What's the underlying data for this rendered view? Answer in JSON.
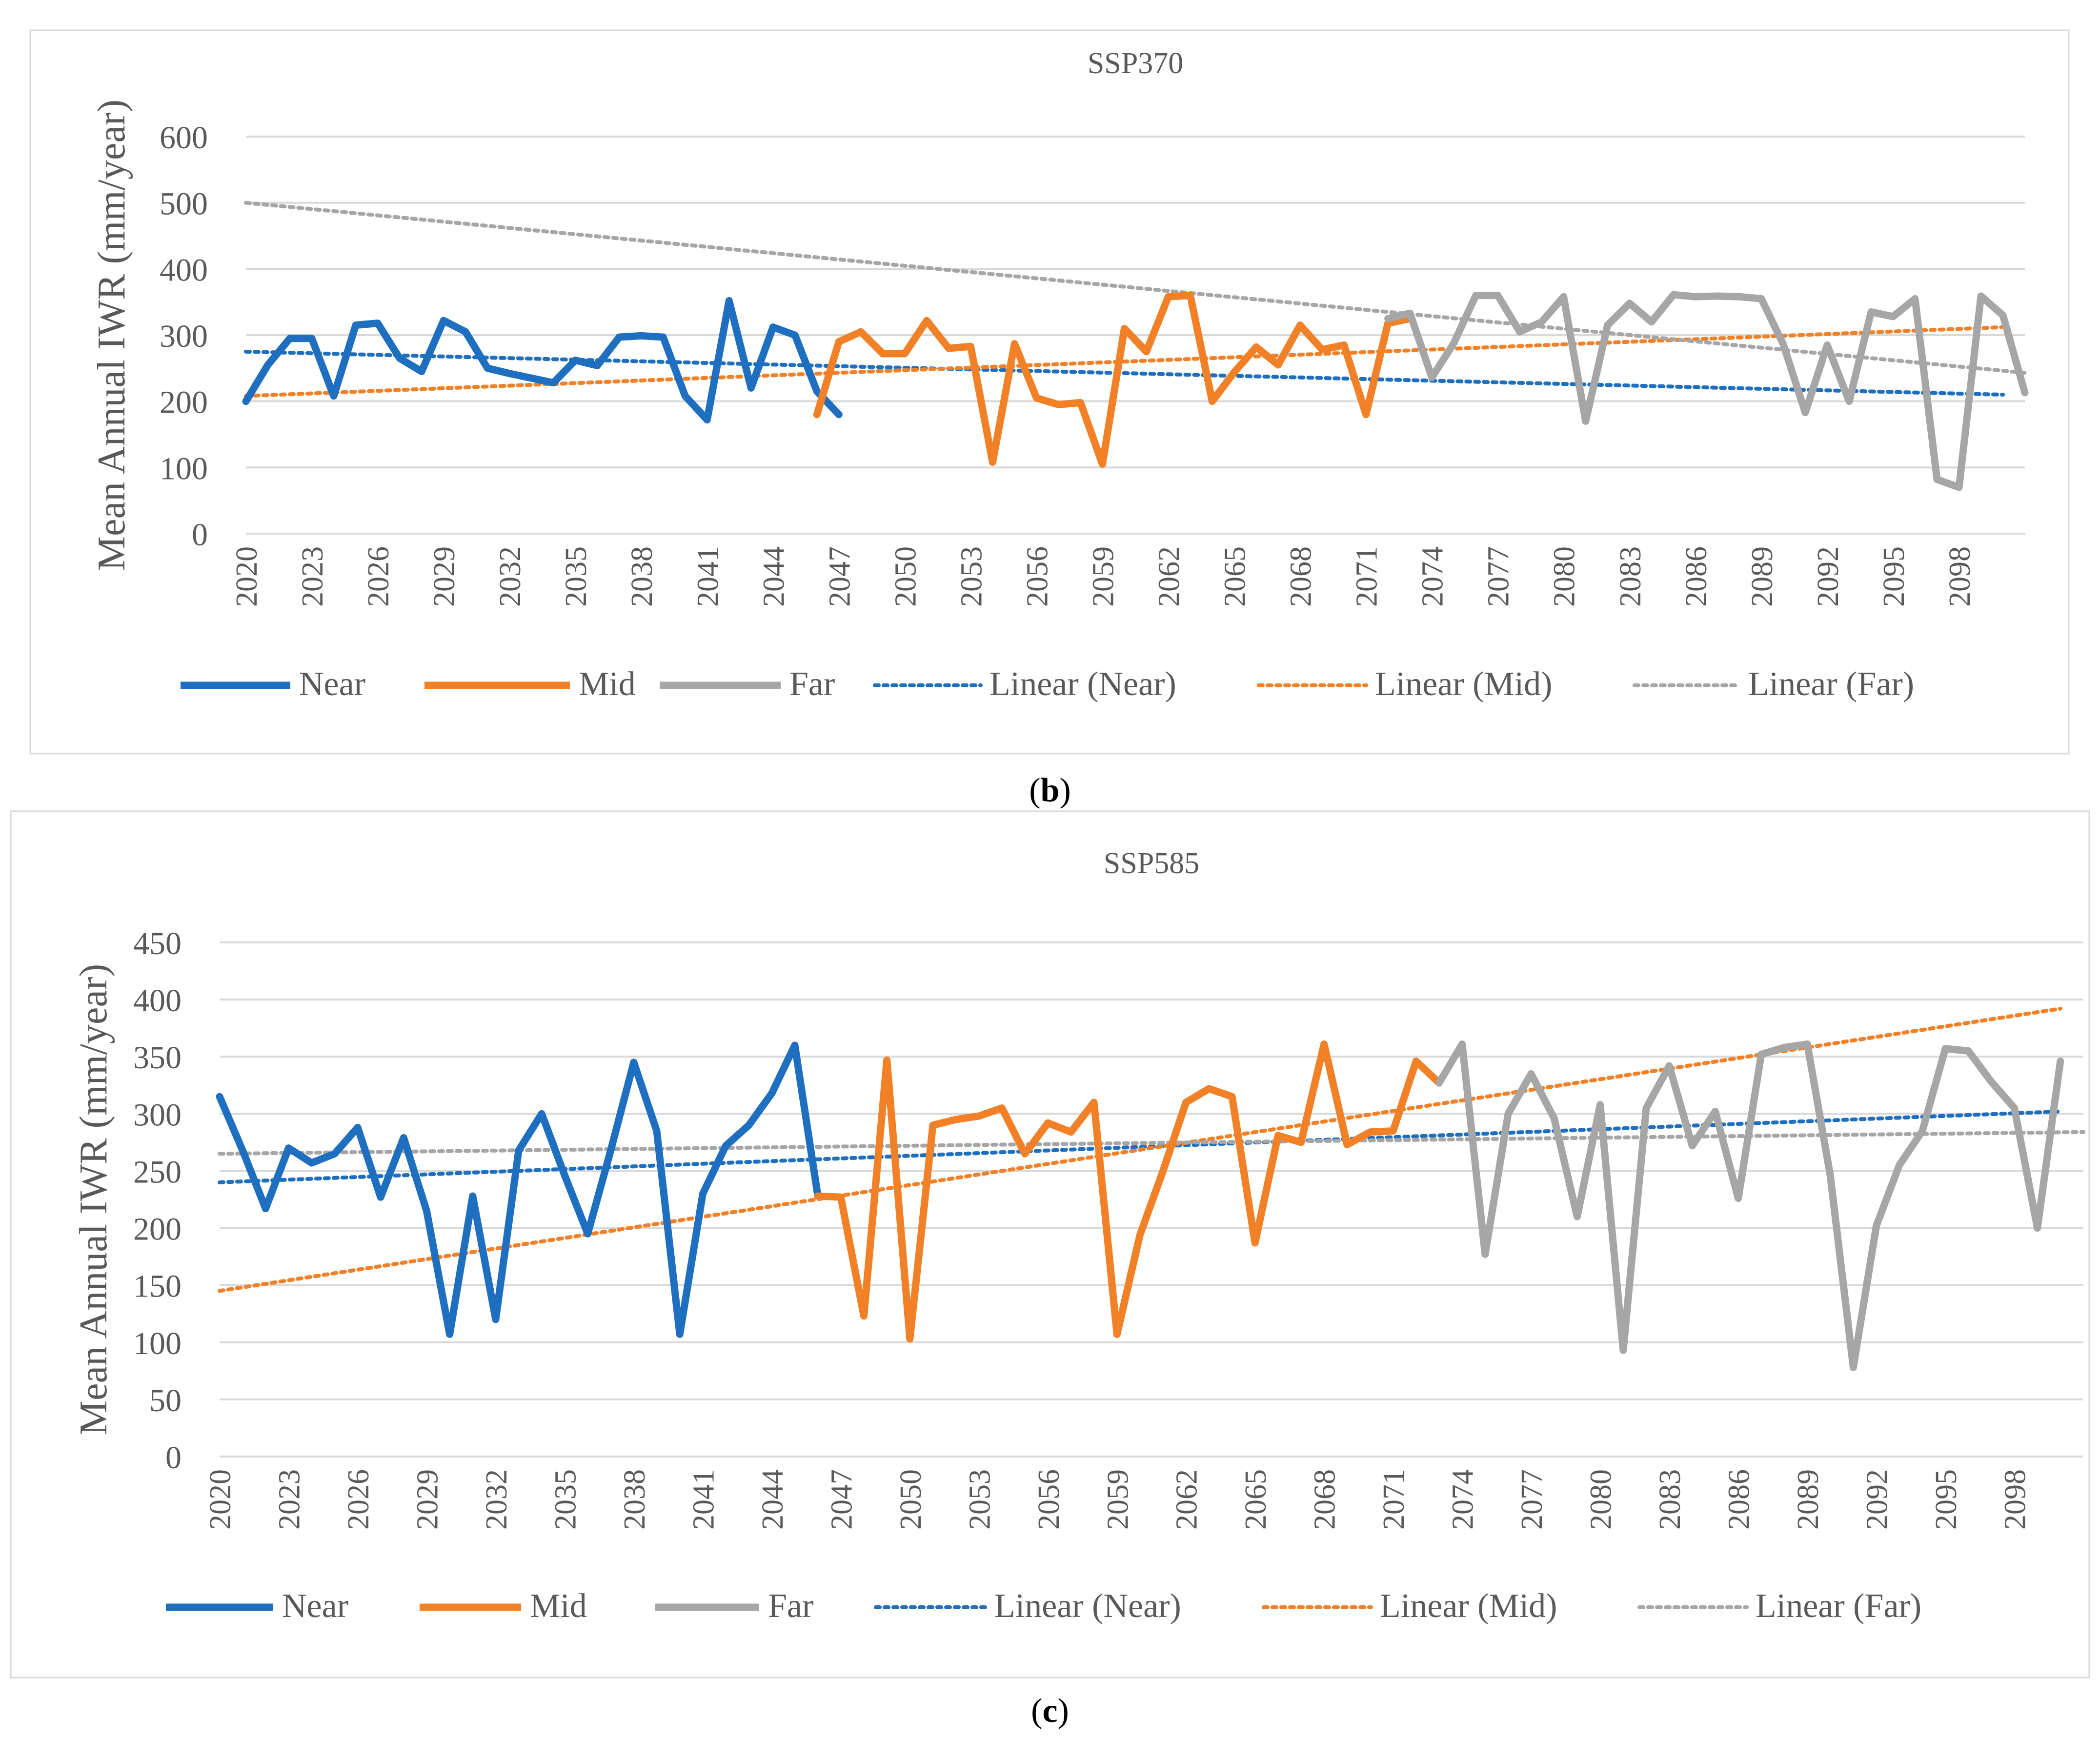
{
  "colors": {
    "near": "#1F6FC0",
    "mid": "#F28026",
    "far": "#A6A6A6",
    "grid": "#D9D9D9",
    "text": "#595959",
    "border": "#D9D9D9",
    "caption": "#000000"
  },
  "chart_data": [
    {
      "type": "line",
      "title": "SSP370",
      "caption_open": "(",
      "caption_letter": "b",
      "caption_close": ")",
      "ylabel": "Mean Annual IWR (mm/year)",
      "xlabel": "",
      "ylim": [
        0,
        600
      ],
      "yticks": [
        "0",
        "100",
        "200",
        "300",
        "400",
        "500",
        "600"
      ],
      "ytick_values": [
        0,
        100,
        200,
        300,
        400,
        500,
        600
      ],
      "xlim": [
        2020,
        2101
      ],
      "xticks": [
        "2020",
        "2023",
        "2026",
        "2029",
        "2032",
        "2035",
        "2038",
        "2041",
        "2044",
        "2047",
        "2050",
        "2053",
        "2056",
        "2059",
        "2062",
        "2065",
        "2068",
        "2071",
        "2074",
        "2077",
        "2080",
        "2083",
        "2086",
        "2089",
        "2092",
        "2095",
        "2098"
      ],
      "xtick_values": [
        2020,
        2023,
        2026,
        2029,
        2032,
        2035,
        2038,
        2041,
        2044,
        2047,
        2050,
        2053,
        2056,
        2059,
        2062,
        2065,
        2068,
        2071,
        2074,
        2077,
        2080,
        2083,
        2086,
        2089,
        2092,
        2095,
        2098
      ],
      "legend": [
        "Near",
        "Mid",
        "Far",
        "Linear (Near)",
        "Linear (Mid)",
        "Linear (Far)"
      ],
      "series": [
        {
          "name": "Near",
          "color": "near",
          "x_start": 2020,
          "values": [
            200,
            255,
            295,
            295,
            208,
            315,
            318,
            265,
            245,
            322,
            305,
            250,
            242,
            235,
            228,
            262,
            254,
            297,
            299,
            297,
            208,
            172,
            352,
            220,
            312,
            300,
            215,
            180
          ]
        },
        {
          "name": "Mid",
          "color": "mid",
          "x_start": 2046,
          "values": [
            180,
            290,
            305,
            272,
            272,
            322,
            280,
            283,
            108,
            287,
            205,
            195,
            198,
            105,
            310,
            275,
            358,
            360,
            200,
            244,
            282,
            255,
            315,
            278,
            285,
            180,
            318,
            325
          ]
        },
        {
          "name": "Far",
          "color": "far",
          "x_start": 2072,
          "values": [
            325,
            333,
            236,
            288,
            360,
            360,
            305,
            320,
            358,
            170,
            315,
            348,
            320,
            361,
            358,
            359,
            358,
            355,
            286,
            183,
            285,
            200,
            335,
            328,
            355,
            82,
            70,
            359,
            330,
            213
          ]
        }
      ],
      "trends": [
        {
          "name": "Linear (Near)",
          "color": "near",
          "x": [
            2020,
            2100
          ],
          "y": [
            275,
            210
          ]
        },
        {
          "name": "Linear (Mid)",
          "color": "mid",
          "x": [
            2020,
            2100
          ],
          "y": [
            208,
            312
          ]
        },
        {
          "name": "Linear (Far)",
          "color": "far",
          "x": [
            2020,
            2101
          ],
          "y": [
            500,
            243
          ]
        }
      ]
    },
    {
      "type": "line",
      "title": "SSP585",
      "caption_open": "(",
      "caption_letter": "c",
      "caption_close": ")",
      "ylabel": "Mean Annual IWR (mm/year)",
      "xlabel": "",
      "ylim": [
        0,
        450
      ],
      "yticks": [
        "0",
        "50",
        "100",
        "150",
        "200",
        "250",
        "300",
        "350",
        "400",
        "450"
      ],
      "ytick_values": [
        0,
        50,
        100,
        150,
        200,
        250,
        300,
        350,
        400,
        450
      ],
      "xlim": [
        2020,
        2101
      ],
      "xticks": [
        "2020",
        "2023",
        "2026",
        "2029",
        "2032",
        "2035",
        "2038",
        "2041",
        "2044",
        "2047",
        "2050",
        "2053",
        "2056",
        "2059",
        "2062",
        "2065",
        "2068",
        "2071",
        "2074",
        "2077",
        "2080",
        "2083",
        "2086",
        "2089",
        "2092",
        "2095",
        "2098"
      ],
      "xtick_values": [
        2020,
        2023,
        2026,
        2029,
        2032,
        2035,
        2038,
        2041,
        2044,
        2047,
        2050,
        2053,
        2056,
        2059,
        2062,
        2065,
        2068,
        2071,
        2074,
        2077,
        2080,
        2083,
        2086,
        2089,
        2092,
        2095,
        2098
      ],
      "legend": [
        "Near",
        "Mid",
        "Far",
        "Linear (Near)",
        "Linear (Mid)",
        "Linear (Far)"
      ],
      "series": [
        {
          "name": "Near",
          "color": "near",
          "x_start": 2020,
          "values": [
            315,
            268,
            217,
            270,
            257,
            265,
            288,
            227,
            279,
            215,
            107,
            228,
            120,
            268,
            300,
            246,
            195,
            268,
            345,
            285,
            107,
            230,
            272,
            290,
            318,
            360,
            228
          ]
        },
        {
          "name": "Mid",
          "color": "mid",
          "x_start": 2046,
          "values": [
            228,
            227,
            123,
            347,
            103,
            290,
            295,
            298,
            305,
            265,
            292,
            284,
            310,
            107,
            194,
            250,
            310,
            322,
            315,
            187,
            281,
            275,
            361,
            273,
            284,
            285,
            346,
            327
          ]
        },
        {
          "name": "Far",
          "color": "far",
          "x_start": 2073,
          "values": [
            327,
            361,
            177,
            300,
            335,
            296,
            210,
            308,
            93,
            305,
            342,
            272,
            302,
            226,
            352,
            358,
            361,
            246,
            78,
            202,
            255,
            285,
            357,
            355,
            328,
            305,
            200,
            346
          ]
        }
      ],
      "trends": [
        {
          "name": "Linear (Near)",
          "color": "near",
          "x": [
            2020,
            2100
          ],
          "y": [
            240,
            302
          ]
        },
        {
          "name": "Linear (Mid)",
          "color": "mid",
          "x": [
            2020,
            2100
          ],
          "y": [
            145,
            392
          ]
        },
        {
          "name": "Linear (Far)",
          "color": "far",
          "x": [
            2020,
            2101
          ],
          "y": [
            265,
            284
          ]
        }
      ]
    }
  ]
}
